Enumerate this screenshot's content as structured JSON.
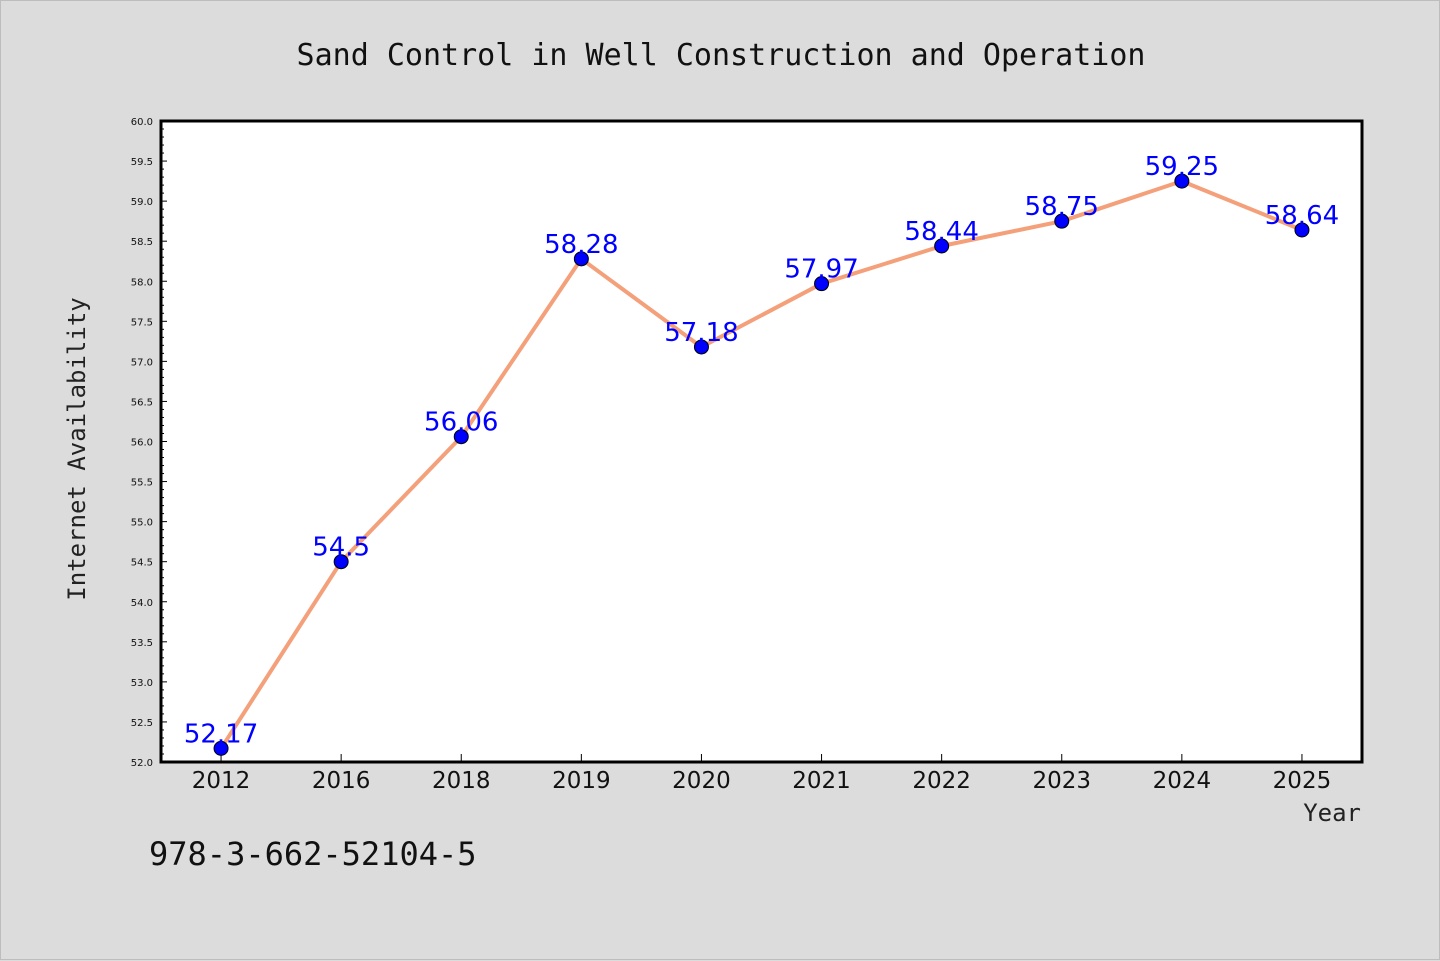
{
  "chart_data": {
    "type": "line",
    "title": "Sand Control in Well Construction and Operation",
    "xlabel": "Year",
    "ylabel": "Internet Availability",
    "categories": [
      "2012",
      "2016",
      "2018",
      "2019",
      "2020",
      "2021",
      "2022",
      "2023",
      "2024",
      "2025"
    ],
    "series": [
      {
        "values": [
          52.17,
          54.5,
          56.06,
          58.28,
          57.18,
          57.97,
          58.44,
          58.75,
          59.25,
          58.64
        ]
      }
    ],
    "data_labels": [
      "52.17",
      "54.5",
      "56.06",
      "58.28",
      "57.18",
      "57.97",
      "58.44",
      "58.75",
      "59.25",
      "58.64"
    ],
    "ylim": [
      52.0,
      60.0
    ],
    "yticks": [
      "52.0",
      "52.5",
      "53.0",
      "53.5",
      "54.0",
      "54.5",
      "55.0",
      "55.5",
      "56.0",
      "56.5",
      "57.0",
      "57.5",
      "58.0",
      "58.5",
      "59.0",
      "59.5",
      "60.0"
    ],
    "grid": false,
    "legend": "none",
    "colors": {
      "line": "#f4a07a",
      "marker": "#0000ff",
      "label": "#0000ff",
      "background": "#dcdcdc",
      "plot_background": "#ffffff"
    }
  },
  "footnote": "978-3-662-52104-5"
}
